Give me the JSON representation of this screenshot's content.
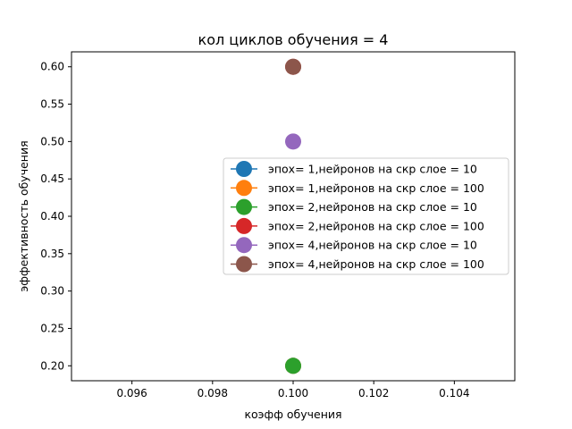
{
  "chart_data": {
    "type": "scatter",
    "title": "кол циклов обучения = 4",
    "xlabel": "коэфф обучения",
    "ylabel": "эффективность обучения",
    "xlim": [
      0.0945,
      0.1055
    ],
    "ylim": [
      0.18,
      0.62
    ],
    "xticks": [
      0.096,
      0.098,
      0.1,
      0.102,
      0.104
    ],
    "xtick_labels": [
      "0.096",
      "0.098",
      "0.100",
      "0.102",
      "0.104"
    ],
    "yticks": [
      0.2,
      0.25,
      0.3,
      0.35,
      0.4,
      0.45,
      0.5,
      0.55,
      0.6
    ],
    "ytick_labels": [
      "0.20",
      "0.25",
      "0.30",
      "0.35",
      "0.40",
      "0.45",
      "0.50",
      "0.55",
      "0.60"
    ],
    "grid": false,
    "legend_position": "center-right",
    "series": [
      {
        "name": "эпох= 1,нейронов на скр слое = 10",
        "color": "#1f77b4",
        "points": [
          [
            0.1,
            0.2
          ]
        ]
      },
      {
        "name": "эпох= 1,нейронов на скр слое = 100",
        "color": "#ff7f0e",
        "points": [
          [
            0.1,
            0.2
          ]
        ]
      },
      {
        "name": "эпох= 2,нейронов на скр слое = 10",
        "color": "#2ca02c",
        "points": [
          [
            0.1,
            0.2
          ]
        ]
      },
      {
        "name": "эпох= 2,нейронов на скр слое = 100",
        "color": "#d62728",
        "points": [
          [
            0.1,
            0.6
          ]
        ]
      },
      {
        "name": "эпох= 4,нейронов на скр слое = 10",
        "color": "#9467bd",
        "points": [
          [
            0.1,
            0.5
          ]
        ]
      },
      {
        "name": "эпох= 4,нейронов на скр слое = 100",
        "color": "#8c564b",
        "points": [
          [
            0.1,
            0.6
          ]
        ]
      }
    ]
  }
}
